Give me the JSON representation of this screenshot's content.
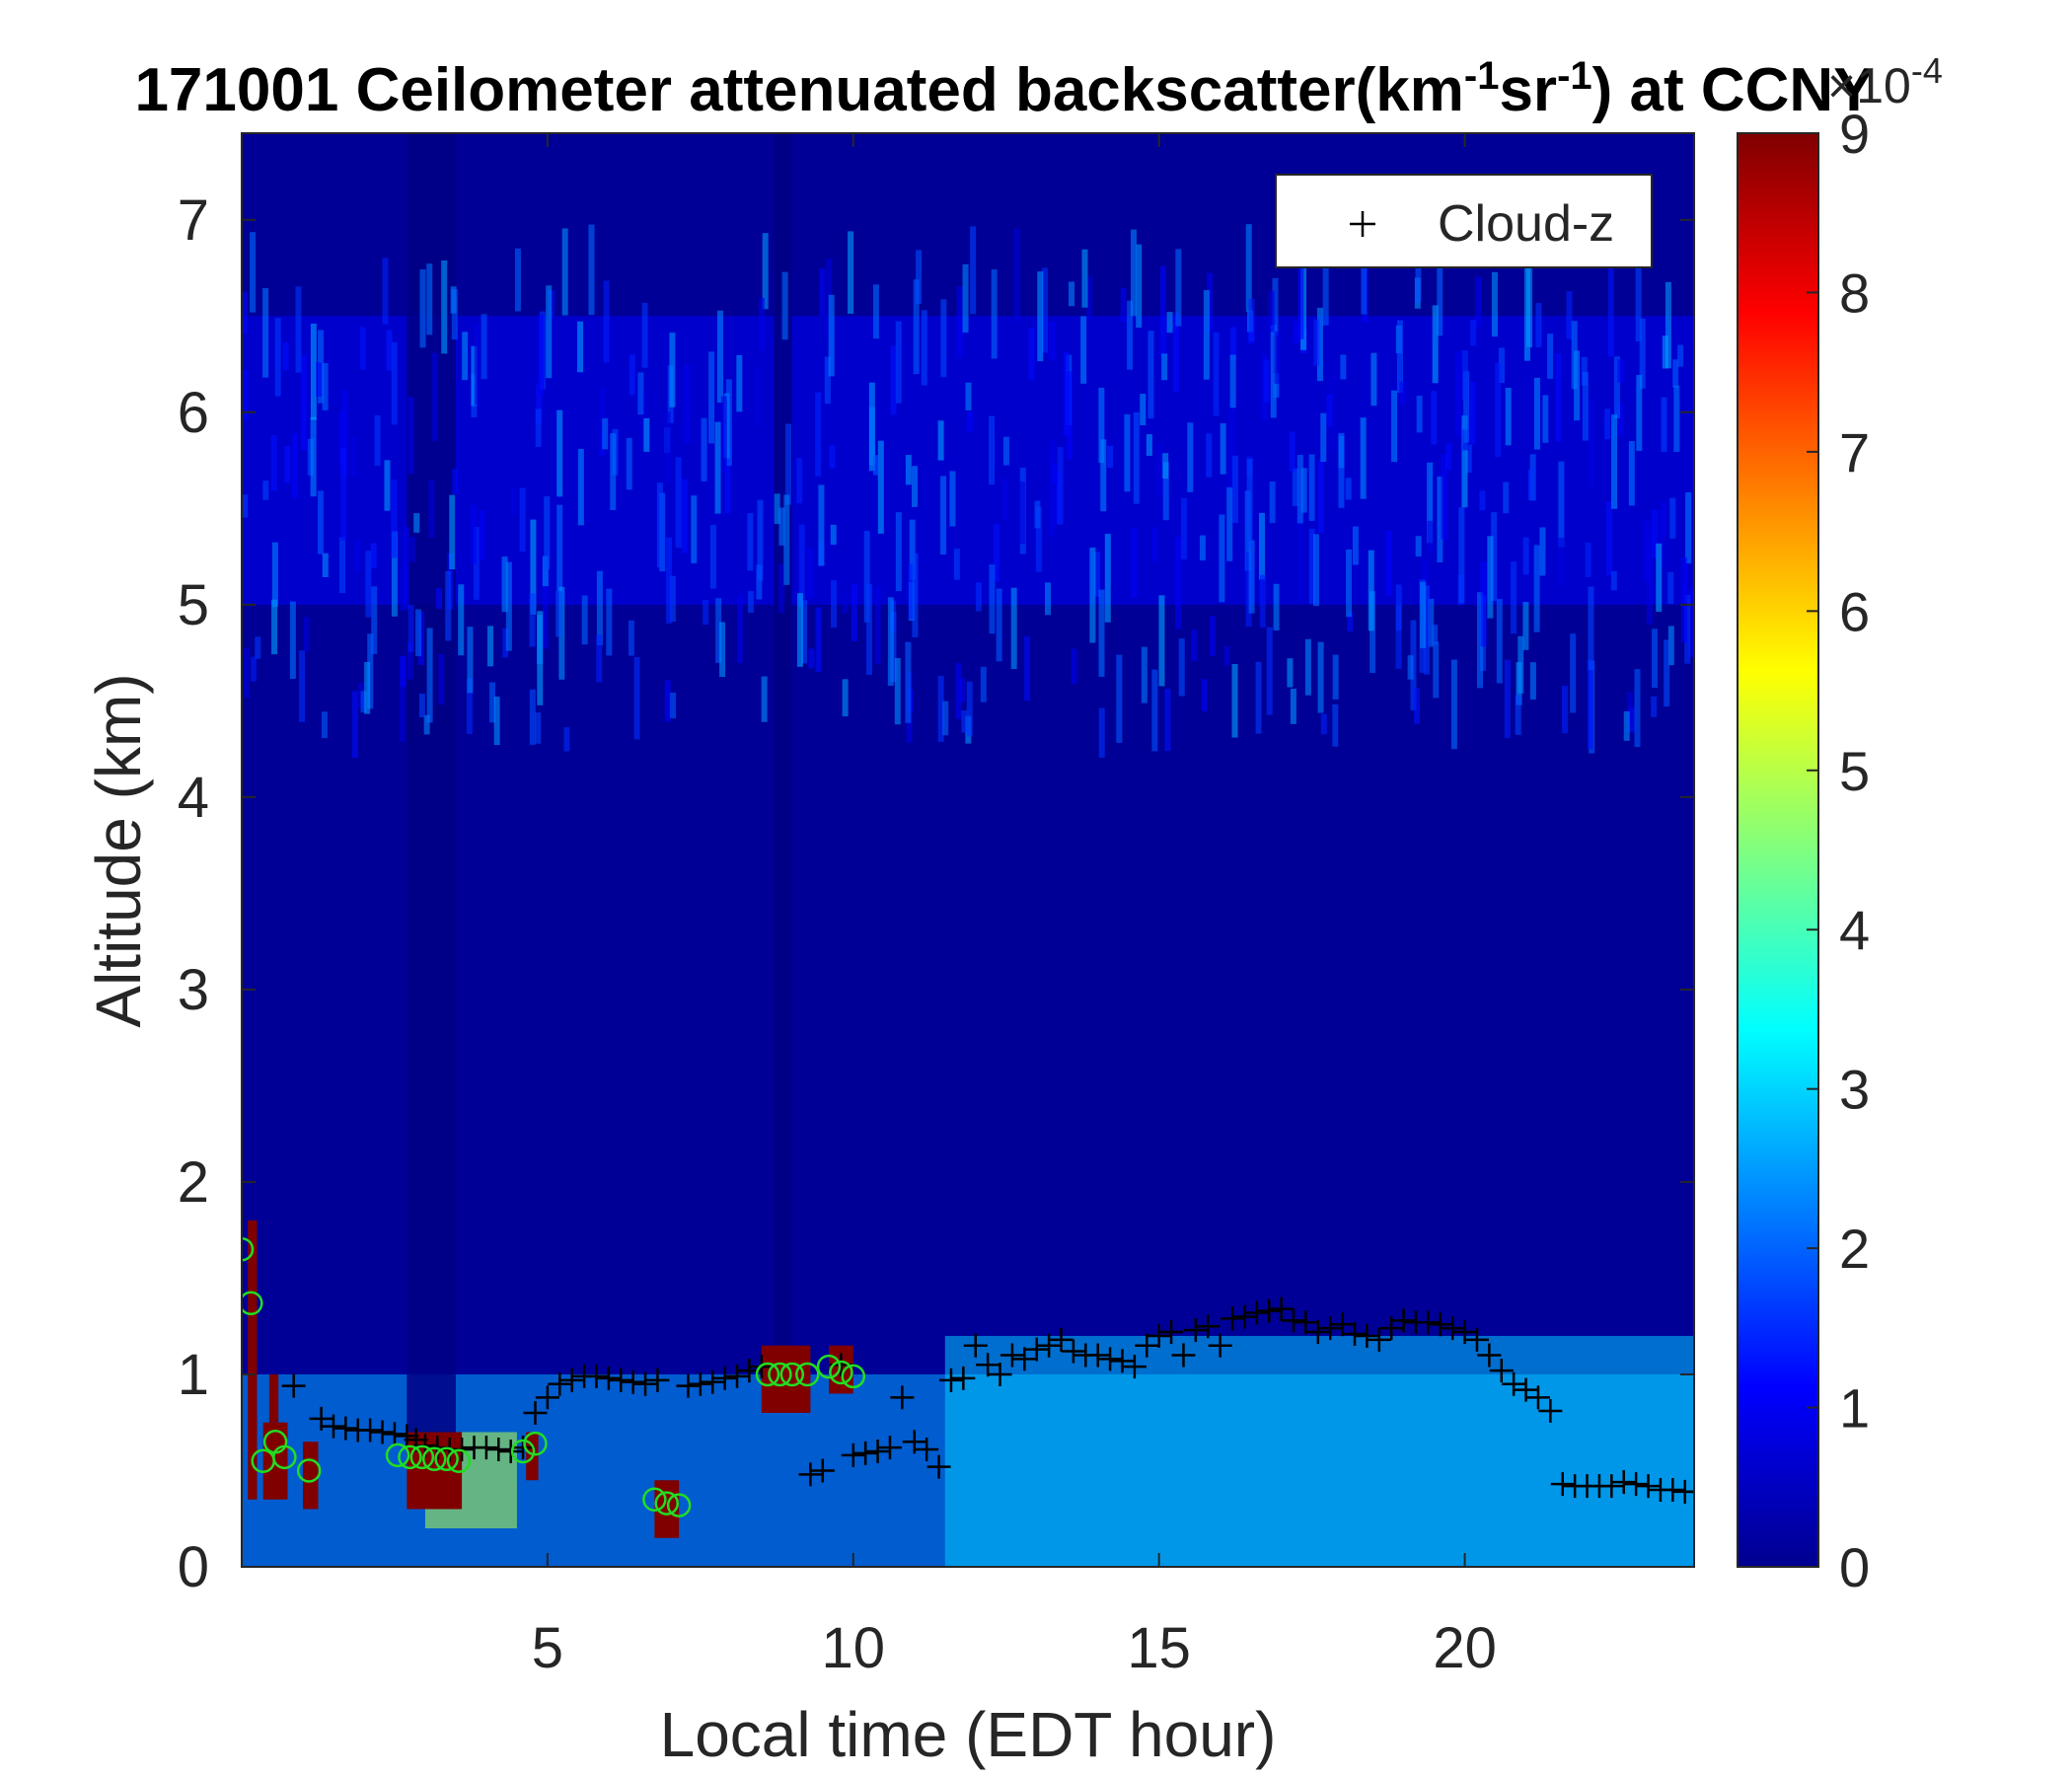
{
  "chart_data": {
    "type": "heatmap",
    "title": {
      "parts": [
        "171001 Ceilometer attenuated backscatter(km",
        "-1",
        "sr",
        "-1",
        ") at CCNY"
      ]
    },
    "xlabel": "Local time (EDT hour)",
    "ylabel": "Altitude (km)",
    "xlim": [
      0,
      23.75
    ],
    "ylim": [
      0,
      7.45
    ],
    "xticks": [
      5,
      10,
      15,
      20
    ],
    "xtick_labels": [
      "5",
      "10",
      "15",
      "20"
    ],
    "yticks": [
      0,
      1,
      2,
      3,
      4,
      5,
      6,
      7
    ],
    "ytick_labels": [
      "0",
      "1",
      "2",
      "3",
      "4",
      "5",
      "6",
      "7"
    ],
    "colorbar": {
      "colormap": "jet",
      "clim": [
        0,
        9
      ],
      "ticks": [
        0,
        1,
        2,
        3,
        4,
        5,
        6,
        7,
        8,
        9
      ],
      "tick_labels": [
        "0",
        "1",
        "2",
        "3",
        "4",
        "5",
        "6",
        "7",
        "8",
        "9"
      ],
      "exponent_label": "×10",
      "exponent_power": "-4"
    },
    "grid": false,
    "legend": {
      "placement": "top-right",
      "entries": [
        {
          "marker": "+",
          "color": "#000000",
          "label": "Cloud-z"
        }
      ]
    },
    "background_value": 0.2,
    "heatmap_features": [
      {
        "kind": "layer",
        "x": [
          0,
          23.75
        ],
        "y": [
          5.0,
          6.5
        ],
        "value": 1.1,
        "note": "elevated aerosol layer"
      },
      {
        "kind": "layer",
        "x": [
          0,
          23.75
        ],
        "y": [
          0,
          1.0
        ],
        "value": 2.6,
        "note": "boundary layer"
      },
      {
        "kind": "layer",
        "x": [
          11.5,
          23.75
        ],
        "y": [
          0,
          1.2
        ],
        "value": 2.9
      },
      {
        "kind": "layer",
        "x": [
          3.0,
          4.5
        ],
        "y": [
          0.2,
          0.7
        ],
        "value": 5.0
      },
      {
        "kind": "column",
        "x": [
          2.7,
          3.5
        ],
        "y": [
          0.7,
          7.45
        ],
        "value": 0.05
      },
      {
        "kind": "column",
        "x": [
          8.7,
          9.0
        ],
        "y": [
          1.1,
          7.45
        ],
        "value": 0.05
      }
    ],
    "saturated_blocks": [
      {
        "x": [
          0.1,
          0.25
        ],
        "y": [
          0.35,
          1.8
        ]
      },
      {
        "x": [
          0.35,
          0.75
        ],
        "y": [
          0.35,
          0.75
        ]
      },
      {
        "x": [
          0.45,
          0.6
        ],
        "y": [
          0.75,
          1.0
        ]
      },
      {
        "x": [
          1.0,
          1.25
        ],
        "y": [
          0.3,
          0.65
        ]
      },
      {
        "x": [
          2.7,
          3.6
        ],
        "y": [
          0.3,
          0.7
        ]
      },
      {
        "x": [
          4.65,
          4.85
        ],
        "y": [
          0.45,
          0.7
        ]
      },
      {
        "x": [
          6.75,
          7.15
        ],
        "y": [
          0.15,
          0.45
        ]
      },
      {
        "x": [
          8.5,
          9.3
        ],
        "y": [
          0.8,
          1.15
        ]
      },
      {
        "x": [
          9.6,
          10.0
        ],
        "y": [
          0.9,
          1.15
        ]
      }
    ],
    "series": [
      {
        "name": "Cloud-z",
        "marker": "+",
        "color": "#000000",
        "x": [
          0.85,
          1.3,
          1.5,
          1.7,
          1.9,
          2.1,
          2.3,
          2.5,
          2.7,
          2.85,
          3.0,
          3.2,
          3.4,
          3.6,
          3.8,
          4.0,
          4.2,
          4.4,
          4.6,
          4.8,
          5.0,
          5.2,
          5.4,
          5.6,
          5.8,
          6.0,
          6.2,
          6.4,
          6.6,
          6.8,
          7.3,
          7.5,
          7.7,
          7.9,
          8.1,
          8.3,
          8.5,
          9.3,
          9.5,
          9.8,
          10.0,
          10.2,
          10.4,
          10.6,
          10.8,
          11.0,
          11.2,
          11.4,
          11.6,
          11.8,
          12.0,
          12.2,
          12.4,
          12.6,
          12.8,
          13.0,
          13.2,
          13.4,
          13.6,
          13.8,
          14.0,
          14.2,
          14.4,
          14.6,
          14.8,
          15.0,
          15.2,
          15.4,
          15.6,
          15.8,
          16.0,
          16.2,
          16.4,
          16.6,
          16.8,
          17.0,
          17.2,
          17.4,
          17.6,
          17.8,
          18.0,
          18.2,
          18.4,
          18.6,
          18.8,
          19.0,
          19.2,
          19.4,
          19.6,
          19.8,
          20.0,
          20.2,
          20.4,
          20.6,
          20.8,
          21.0,
          21.2,
          21.4,
          21.6,
          21.8,
          22.0,
          22.2,
          22.4,
          22.6,
          22.8,
          23.0,
          23.2,
          23.4,
          23.6,
          23.8
        ],
        "y": [
          0.94,
          0.77,
          0.73,
          0.72,
          0.71,
          0.71,
          0.7,
          0.69,
          0.68,
          0.66,
          0.63,
          0.62,
          0.61,
          0.61,
          0.62,
          0.62,
          0.61,
          0.6,
          0.62,
          0.8,
          0.88,
          0.95,
          0.97,
          0.99,
          0.99,
          0.98,
          0.97,
          0.96,
          0.95,
          0.97,
          0.94,
          0.95,
          0.96,
          0.98,
          0.99,
          1.02,
          1.04,
          0.48,
          0.5,
          1.05,
          0.58,
          0.59,
          0.6,
          0.62,
          0.88,
          0.65,
          0.61,
          0.52,
          0.97,
          0.98,
          1.15,
          1.05,
          1.0,
          1.1,
          1.08,
          1.13,
          1.15,
          1.18,
          1.12,
          1.1,
          1.1,
          1.08,
          1.07,
          1.04,
          1.15,
          1.2,
          1.22,
          1.1,
          1.23,
          1.25,
          1.15,
          1.29,
          1.3,
          1.32,
          1.33,
          1.34,
          1.28,
          1.27,
          1.22,
          1.24,
          1.26,
          1.21,
          1.2,
          1.18,
          1.24,
          1.28,
          1.27,
          1.27,
          1.26,
          1.24,
          1.22,
          1.18,
          1.1,
          1.02,
          0.95,
          0.92,
          0.88,
          0.81,
          0.43,
          0.42,
          0.42,
          0.42,
          0.42,
          0.44,
          0.43,
          0.42,
          0.4,
          0.4,
          0.39,
          0.39
        ]
      },
      {
        "name": "",
        "marker": "o",
        "color": "#22dd22",
        "x": [
          0.0,
          0.15,
          0.35,
          0.55,
          0.7,
          1.1,
          2.55,
          2.75,
          2.95,
          3.15,
          3.35,
          3.55,
          4.6,
          4.8,
          6.75,
          6.95,
          7.15,
          8.6,
          8.8,
          9.0,
          9.25,
          9.6,
          9.8,
          10.0
        ],
        "y": [
          1.65,
          1.37,
          0.55,
          0.65,
          0.57,
          0.5,
          0.58,
          0.57,
          0.57,
          0.56,
          0.56,
          0.55,
          0.6,
          0.64,
          0.35,
          0.33,
          0.32,
          1.0,
          1.0,
          1.0,
          1.0,
          1.04,
          1.01,
          0.99
        ]
      }
    ]
  }
}
